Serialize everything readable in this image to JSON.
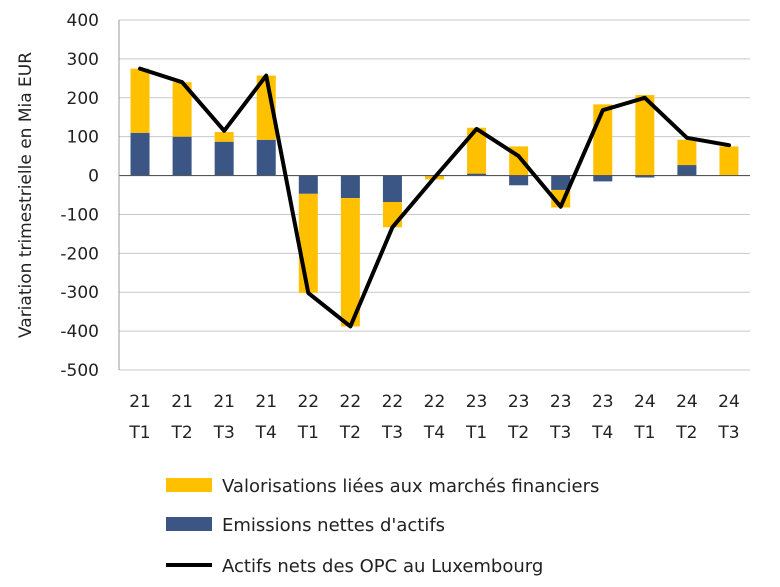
{
  "chart_data": {
    "type": "bar",
    "stacked": true,
    "ylabel": "Variation trimestrielle en Mia EUR",
    "ylim": [
      -500,
      400
    ],
    "yticks": [
      400,
      300,
      200,
      100,
      0,
      -100,
      -200,
      -300,
      -400,
      -500
    ],
    "grid": true,
    "legend_position": "bottom",
    "categories": [
      {
        "year": "21",
        "quarter": "T1"
      },
      {
        "year": "21",
        "quarter": "T2"
      },
      {
        "year": "21",
        "quarter": "T3"
      },
      {
        "year": "21",
        "quarter": "T4"
      },
      {
        "year": "22",
        "quarter": "T1"
      },
      {
        "year": "22",
        "quarter": "T2"
      },
      {
        "year": "22",
        "quarter": "T3"
      },
      {
        "year": "22",
        "quarter": "T4"
      },
      {
        "year": "23",
        "quarter": "T1"
      },
      {
        "year": "23",
        "quarter": "T2"
      },
      {
        "year": "23",
        "quarter": "T3"
      },
      {
        "year": "23",
        "quarter": "T4"
      },
      {
        "year": "24",
        "quarter": "T1"
      },
      {
        "year": "24",
        "quarter": "T2"
      },
      {
        "year": "24",
        "quarter": "T3"
      }
    ],
    "series": [
      {
        "name": "Valorisations liées aux marchés financiers",
        "kind": "bar",
        "color": "#FFC000",
        "values": [
          165,
          140,
          25,
          165,
          -255,
          -330,
          -65,
          -10,
          118,
          75,
          -45,
          183,
          207,
          65,
          75
        ]
      },
      {
        "name": "Emissions nettes d'actifs",
        "kind": "bar",
        "color": "#3B5584",
        "values": [
          110,
          100,
          87,
          92,
          -47,
          -58,
          -68,
          0,
          5,
          -25,
          -37,
          -15,
          -5,
          27,
          0
        ]
      },
      {
        "name": "Actifs nets des OPC au Luxembourg",
        "kind": "line",
        "color": "#000000",
        "values": [
          275,
          240,
          115,
          257,
          -302,
          -388,
          -133,
          -5,
          120,
          50,
          -80,
          168,
          200,
          97,
          78
        ]
      }
    ]
  }
}
